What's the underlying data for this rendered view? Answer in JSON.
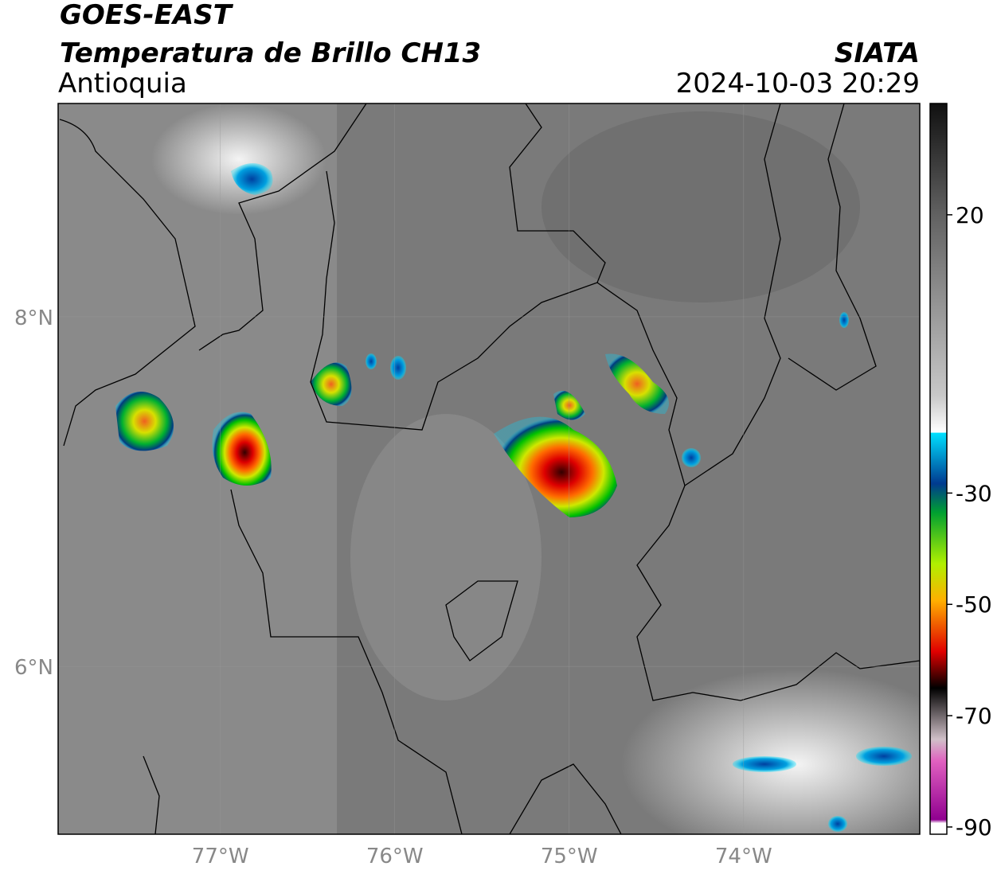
{
  "header": {
    "line1": "GOES-EAST",
    "line2": "Temperatura de Brillo CH13",
    "subtitle": "Antioquia",
    "source": "SIATA",
    "datetime": "2024-10-03 20:29"
  },
  "map": {
    "xlim": [
      -77.93,
      -72.99
    ],
    "ylim": [
      5.04,
      9.22
    ],
    "xticks": [
      {
        "value": -77,
        "label": "77°W"
      },
      {
        "value": -76,
        "label": "76°W"
      },
      {
        "value": -75,
        "label": "75°W"
      },
      {
        "value": -74,
        "label": "74°W"
      }
    ],
    "yticks": [
      {
        "value": 8,
        "label": "8°N"
      },
      {
        "value": 6,
        "label": "6°N"
      }
    ]
  },
  "colorbar": {
    "lim": [
      -91.3,
      40
    ],
    "ticks": [
      20,
      -30,
      -50,
      -70,
      -90
    ]
  }
}
